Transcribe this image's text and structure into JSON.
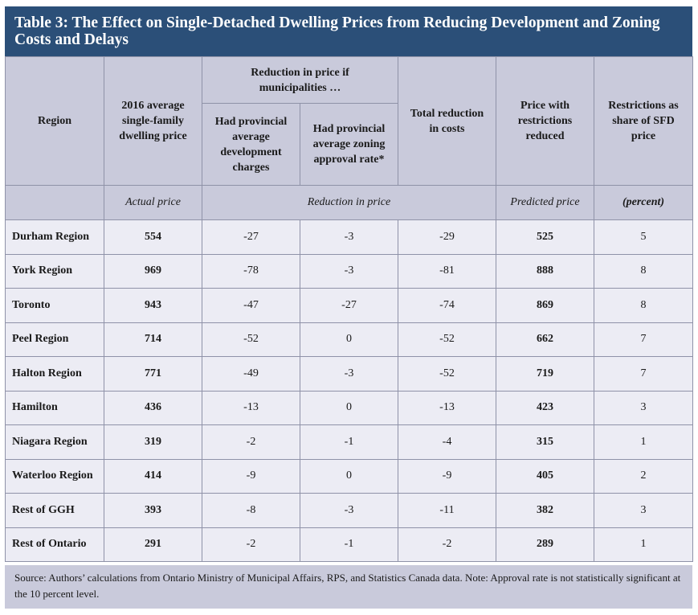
{
  "title": "Table 3: The Effect on Single-Detached Dwelling Prices from Reducing Development and Zoning Costs and Delays",
  "headers": {
    "region": "Region",
    "actual": "2016 average single-family dwelling price",
    "reduction_group": "Reduction in price if municipalities …",
    "dev_charges": "Had provincial average development charges",
    "zoning": "Had provincial average zoning approval rate*",
    "total": "Total reduction in costs",
    "predicted": "Price with restrictions reduced",
    "share": "Restrictions as share of SFD price"
  },
  "units": {
    "actual": "Actual price",
    "reduction": "Reduction in price",
    "predicted": "Predicted price",
    "share": "(percent)"
  },
  "rows": [
    {
      "region": "Durham Region",
      "actual": "554",
      "dev": "-27",
      "zoning": "-3",
      "total": "-29",
      "predicted": "525",
      "share": "5"
    },
    {
      "region": "York Region",
      "actual": "969",
      "dev": "-78",
      "zoning": "-3",
      "total": "-81",
      "predicted": "888",
      "share": "8"
    },
    {
      "region": "Toronto",
      "actual": "943",
      "dev": "-47",
      "zoning": "-27",
      "total": "-74",
      "predicted": "869",
      "share": "8"
    },
    {
      "region": "Peel Region",
      "actual": "714",
      "dev": "-52",
      "zoning": "0",
      "total": "-52",
      "predicted": "662",
      "share": "7"
    },
    {
      "region": "Halton Region",
      "actual": "771",
      "dev": "-49",
      "zoning": "-3",
      "total": "-52",
      "predicted": "719",
      "share": "7"
    },
    {
      "region": "Hamilton",
      "actual": "436",
      "dev": "-13",
      "zoning": "0",
      "total": "-13",
      "predicted": "423",
      "share": "3"
    },
    {
      "region": "Niagara Region",
      "actual": "319",
      "dev": "-2",
      "zoning": "-1",
      "total": "-4",
      "predicted": "315",
      "share": "1"
    },
    {
      "region": "Waterloo Region",
      "actual": "414",
      "dev": "-9",
      "zoning": "0",
      "total": "-9",
      "predicted": "405",
      "share": "2"
    },
    {
      "region": "Rest of GGH",
      "actual": "393",
      "dev": "-8",
      "zoning": "-3",
      "total": "-11",
      "predicted": "382",
      "share": "3"
    },
    {
      "region": "Rest of Ontario",
      "actual": "291",
      "dev": "-2",
      "zoning": "-1",
      "total": "-2",
      "predicted": "289",
      "share": "1"
    }
  ],
  "note": "Source: Authors’ calculations from Ontario Ministry of Municipal Affairs, RPS, and Statistics Canada data. Note: Approval rate is not statistically significant at the 10 percent level."
}
